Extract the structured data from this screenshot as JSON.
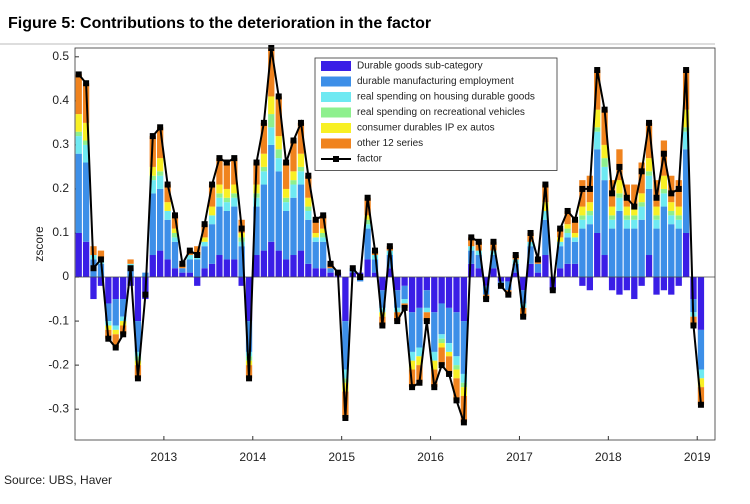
{
  "chart_data": {
    "type": "bar",
    "stacked": true,
    "title": "Figure 5: Contributions to the deterioration in the factor",
    "ylabel": "zscore",
    "source": "Source:  UBS, Haver",
    "xlim": [
      2012.0,
      2019.2
    ],
    "xticks": [
      2013,
      2014,
      2015,
      2016,
      2017,
      2018,
      2019
    ],
    "ylim": [
      -0.37,
      0.52
    ],
    "yticks": [
      0.5,
      0.4,
      0.3,
      0.2,
      0.1,
      0,
      -0.1,
      -0.2,
      -0.3
    ],
    "grid": false,
    "legend": "top",
    "x": [
      2012.042,
      2012.125,
      2012.208,
      2012.292,
      2012.375,
      2012.458,
      2012.542,
      2012.625,
      2012.708,
      2012.792,
      2012.875,
      2012.958,
      2013.042,
      2013.125,
      2013.208,
      2013.292,
      2013.375,
      2013.458,
      2013.542,
      2013.625,
      2013.708,
      2013.792,
      2013.875,
      2013.958,
      2014.042,
      2014.125,
      2014.208,
      2014.292,
      2014.375,
      2014.458,
      2014.542,
      2014.625,
      2014.708,
      2014.792,
      2014.875,
      2014.958,
      2015.042,
      2015.125,
      2015.208,
      2015.292,
      2015.375,
      2015.458,
      2015.542,
      2015.625,
      2015.708,
      2015.792,
      2015.875,
      2015.958,
      2016.042,
      2016.125,
      2016.208,
      2016.292,
      2016.375,
      2016.458,
      2016.542,
      2016.625,
      2016.708,
      2016.792,
      2016.875,
      2016.958,
      2017.042,
      2017.125,
      2017.208,
      2017.292,
      2017.375,
      2017.458,
      2017.542,
      2017.625,
      2017.708,
      2017.792,
      2017.875,
      2017.958,
      2018.042,
      2018.125,
      2018.208,
      2018.292,
      2018.375,
      2018.458,
      2018.542,
      2018.625,
      2018.708,
      2018.792,
      2018.875,
      2018.958,
      2019.042
    ],
    "series": [
      {
        "name": "Durable goods sub-category",
        "color": "#3a1ee6",
        "values": [
          0.1,
          0.08,
          -0.05,
          -0.02,
          -0.06,
          -0.05,
          -0.05,
          -0.02,
          -0.1,
          -0.05,
          0.05,
          0.06,
          0.04,
          0.02,
          0.01,
          0.01,
          -0.02,
          0.02,
          0.03,
          0.05,
          0.04,
          0.04,
          -0.02,
          -0.1,
          0.05,
          0.06,
          0.08,
          0.06,
          0.04,
          0.05,
          0.06,
          0.03,
          0.02,
          0.02,
          0.01,
          0.01,
          -0.1,
          0.01,
          0.01,
          0.04,
          0.01,
          -0.03,
          0.02,
          -0.03,
          -0.02,
          -0.08,
          -0.07,
          -0.03,
          -0.08,
          -0.06,
          -0.07,
          -0.08,
          -0.1,
          0.03,
          0.02,
          -0.02,
          0.02,
          -0.01,
          -0.01,
          0.01,
          -0.03,
          0.03,
          0.01,
          0.05,
          -0.03,
          0.02,
          0.03,
          0.03,
          -0.02,
          -0.03,
          0.1,
          0.05,
          -0.03,
          -0.04,
          -0.03,
          -0.05,
          -0.02,
          0.05,
          -0.04,
          -0.03,
          -0.04,
          -0.02,
          0.1,
          -0.05,
          -0.12
        ]
      },
      {
        "name": "durable manufacturing employment",
        "color": "#3d8fe8",
        "values": [
          0.18,
          0.18,
          0.04,
          0.03,
          -0.04,
          -0.06,
          -0.04,
          0.02,
          -0.07,
          0.01,
          0.14,
          0.14,
          0.09,
          0.06,
          0.01,
          0.03,
          0.04,
          0.05,
          0.09,
          0.11,
          0.11,
          0.12,
          0.07,
          -0.07,
          0.11,
          0.15,
          0.22,
          0.18,
          0.11,
          0.13,
          0.15,
          0.1,
          0.06,
          0.06,
          0.01,
          0,
          -0.11,
          0.01,
          -0.01,
          0.07,
          0.03,
          -0.04,
          0.03,
          -0.04,
          -0.03,
          -0.09,
          -0.09,
          -0.04,
          -0.09,
          -0.07,
          -0.08,
          -0.1,
          -0.12,
          0.03,
          0.03,
          -0.02,
          0.03,
          -0.01,
          -0.02,
          0.02,
          -0.03,
          0.04,
          0.02,
          0.08,
          0,
          0.05,
          0.06,
          0.05,
          0.11,
          0.12,
          0.19,
          0.17,
          0.11,
          0.15,
          0.11,
          0.11,
          0.13,
          0.15,
          0.11,
          0.16,
          0.12,
          0.11,
          0.19,
          -0.03,
          -0.09
        ]
      },
      {
        "name": "real spending on housing durable goods",
        "color": "#6ee9f2",
        "values": [
          0.04,
          0.04,
          0.01,
          0.01,
          -0.01,
          -0.01,
          -0.01,
          0.01,
          -0.01,
          0,
          0.03,
          0.03,
          0.02,
          0.01,
          0,
          0.01,
          0.01,
          0.01,
          0.02,
          0.02,
          0.02,
          0.02,
          0.01,
          -0.01,
          0.02,
          0.03,
          0.04,
          0.03,
          0.02,
          0.03,
          0.03,
          0.02,
          0.01,
          0.01,
          0,
          0,
          -0.02,
          0,
          0,
          0.01,
          0.01,
          -0.01,
          0.01,
          -0.01,
          -0.01,
          -0.02,
          -0.02,
          -0.01,
          -0.02,
          -0.01,
          -0.02,
          -0.02,
          -0.02,
          0.01,
          0.01,
          0,
          0.01,
          0,
          0,
          0.01,
          -0.01,
          0.01,
          0,
          0.02,
          0,
          0.01,
          0.01,
          0.01,
          0.02,
          0.02,
          0.04,
          0.03,
          0.02,
          0.03,
          0.02,
          0.02,
          0.03,
          0.03,
          0.02,
          0.03,
          0.02,
          0.02,
          0.04,
          -0.01,
          -0.02
        ]
      },
      {
        "name": "real spending on recreational vehicles",
        "color": "#8ef08e",
        "values": [
          0.01,
          0.01,
          0,
          0,
          0,
          0,
          0,
          0,
          -0.01,
          0,
          0.01,
          0.01,
          0,
          0.01,
          0,
          0,
          0,
          0,
          0,
          0.01,
          0.01,
          0.01,
          0.01,
          -0.01,
          0.01,
          0.01,
          0.03,
          0.02,
          0.01,
          0.01,
          0.01,
          0.01,
          0,
          0.01,
          0,
          0,
          -0.01,
          0,
          0,
          0.01,
          0,
          0,
          0,
          0,
          0,
          0,
          0,
          0,
          0,
          -0.01,
          0,
          -0.01,
          -0.01,
          0,
          0,
          0,
          0,
          0,
          0,
          0,
          0,
          0,
          0,
          0,
          0,
          0,
          0.01,
          0,
          0.01,
          0.01,
          0.01,
          0.02,
          0.01,
          0.01,
          0.01,
          0.01,
          0.01,
          0.01,
          0.01,
          0.01,
          0.01,
          0.01,
          0.01,
          0,
          0
        ]
      },
      {
        "name": "consumer durables IP ex autos",
        "color": "#f8f024",
        "values": [
          0.04,
          0.04,
          0,
          0,
          -0.01,
          -0.01,
          -0.01,
          0,
          -0.01,
          0,
          0.02,
          0.03,
          0.02,
          0.01,
          0,
          0,
          0,
          0.01,
          0.02,
          0.02,
          0.02,
          0.02,
          0.01,
          -0.01,
          0.02,
          0.03,
          0.04,
          0.03,
          0.02,
          0.02,
          0.03,
          0.02,
          0.01,
          0.01,
          0,
          0,
          -0.02,
          0,
          0,
          0.01,
          0,
          -0.01,
          0,
          0,
          0,
          -0.02,
          -0.02,
          0,
          -0.02,
          -0.01,
          -0.01,
          -0.02,
          -0.02,
          0,
          0,
          0,
          0,
          0,
          0,
          0,
          0,
          0,
          0,
          0.02,
          0,
          0.01,
          0.01,
          0.01,
          0.02,
          0.02,
          0.04,
          0.03,
          0.02,
          0.03,
          0.02,
          0.02,
          0.02,
          0.03,
          0.02,
          0.03,
          0.02,
          0.02,
          0.04,
          0,
          -0.02
        ]
      },
      {
        "name": "other 12 series",
        "color": "#f0831e",
        "values": [
          0.09,
          0.09,
          0.02,
          0.02,
          -0.02,
          -0.03,
          -0.02,
          0.01,
          -0.03,
          0,
          0.07,
          0.07,
          0.04,
          0.03,
          0.01,
          0.01,
          0.02,
          0.03,
          0.05,
          0.06,
          0.06,
          0.06,
          0.03,
          -0.03,
          0.05,
          0.07,
          0.11,
          0.09,
          0.06,
          0.07,
          0.07,
          0.05,
          0.03,
          0.03,
          0.01,
          0,
          -0.06,
          0,
          0,
          0.04,
          0.01,
          -0.02,
          0.01,
          -0.02,
          -0.01,
          -0.04,
          -0.04,
          -0.02,
          -0.04,
          -0.04,
          -0.04,
          -0.05,
          -0.06,
          0.02,
          0.02,
          -0.01,
          0.02,
          0,
          -0.01,
          0.01,
          -0.02,
          0.02,
          0.01,
          0.04,
          0,
          0.02,
          0.03,
          0.03,
          0.06,
          0.06,
          0.09,
          0.08,
          0.06,
          0.07,
          0.05,
          0.05,
          0.07,
          0.08,
          0.06,
          0.08,
          0.06,
          0.06,
          0.09,
          -0.02,
          -0.04
        ]
      },
      {
        "name": "factor",
        "type": "line",
        "color": "#000000",
        "values": [
          0.46,
          0.44,
          0.02,
          0.04,
          -0.14,
          -0.16,
          -0.13,
          0.02,
          -0.23,
          -0.04,
          0.32,
          0.34,
          0.21,
          0.14,
          0.03,
          0.06,
          0.05,
          0.12,
          0.21,
          0.27,
          0.26,
          0.27,
          0.11,
          -0.23,
          0.26,
          0.35,
          0.52,
          0.41,
          0.26,
          0.31,
          0.35,
          0.23,
          0.13,
          0.14,
          0.03,
          0.01,
          -0.32,
          0.02,
          0,
          0.18,
          0.06,
          -0.11,
          0.07,
          -0.1,
          -0.07,
          -0.25,
          -0.24,
          -0.1,
          -0.25,
          -0.2,
          -0.22,
          -0.28,
          -0.33,
          0.09,
          0.08,
          -0.05,
          0.08,
          -0.02,
          -0.04,
          0.05,
          -0.09,
          0.1,
          0.04,
          0.21,
          -0.03,
          0.11,
          0.15,
          0.13,
          0.2,
          0.2,
          0.47,
          0.38,
          0.19,
          0.25,
          0.18,
          0.16,
          0.24,
          0.35,
          0.18,
          0.28,
          0.19,
          0.2,
          0.47,
          -0.11,
          -0.29
        ]
      }
    ]
  }
}
